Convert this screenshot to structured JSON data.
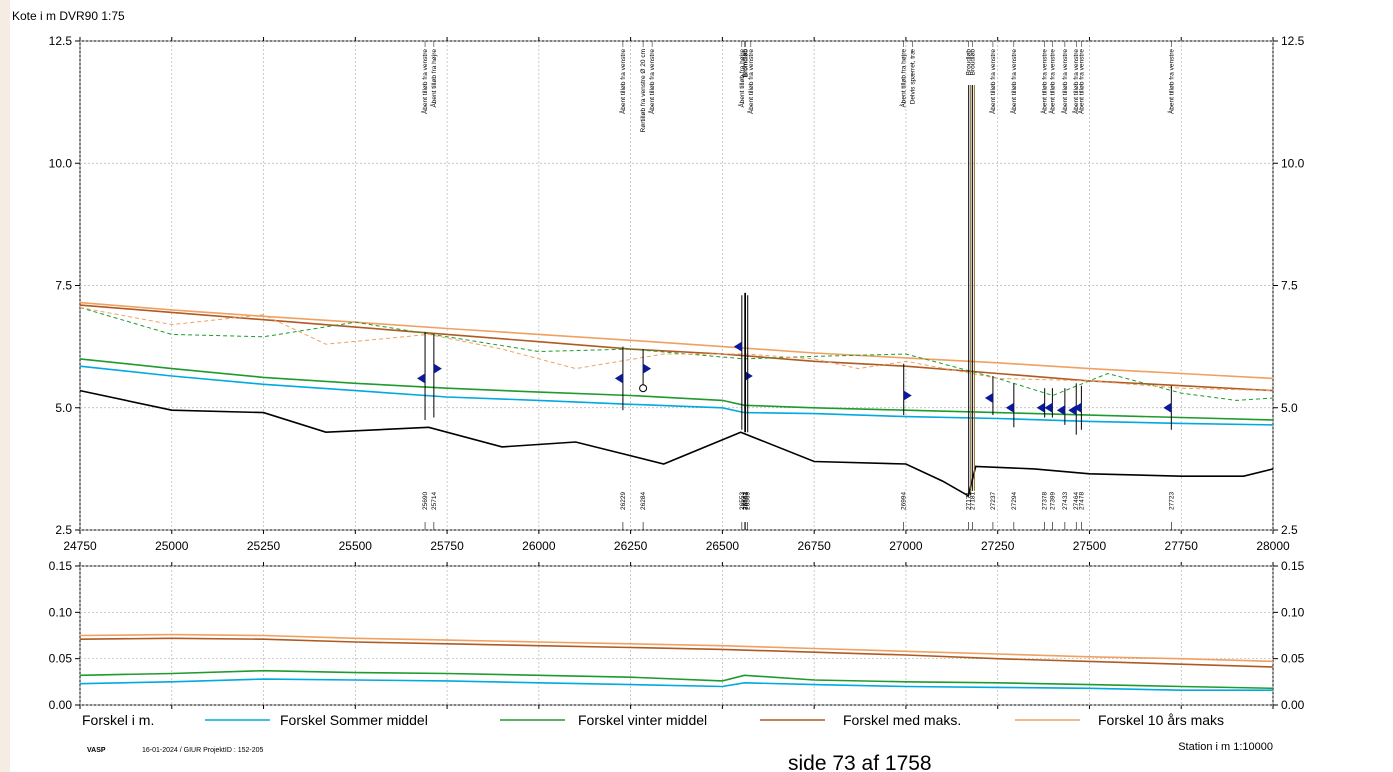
{
  "header": {
    "ylabel": "Kote i m DVR90 1:75"
  },
  "footer": {
    "logo": "VASP",
    "meta": "16-01-2024 / GIUR  ProjektID : 152-205",
    "page_label": "side 73 af 1758",
    "station_label": "Station i m  1:10000"
  },
  "colors": {
    "terrain": "#000000",
    "summer": "#00a9e0",
    "winter": "#1e9b2e",
    "max": "#b05a23",
    "tenyear": "#f0a060",
    "marker": "#0a1a9a"
  },
  "chart_data": [
    {
      "type": "line",
      "xlim": [
        24750,
        28000
      ],
      "ylim": [
        2.5,
        12.5
      ],
      "x_ticks": [
        24750,
        25000,
        25250,
        25500,
        25750,
        26000,
        26250,
        26500,
        26750,
        27000,
        27250,
        27500,
        27750,
        28000
      ],
      "y_ticks": [
        "2.5",
        "5.0",
        "7.5",
        "10.0",
        "12.5"
      ],
      "grid": true,
      "series": [
        {
          "key": "terrain",
          "points": [
            [
              24750,
              5.35
            ],
            [
              25000,
              4.95
            ],
            [
              25250,
              4.9
            ],
            [
              25420,
              4.5
            ],
            [
              25700,
              4.6
            ],
            [
              25900,
              4.2
            ],
            [
              26100,
              4.3
            ],
            [
              26340,
              3.85
            ],
            [
              26550,
              4.5
            ],
            [
              26750,
              3.9
            ],
            [
              27000,
              3.85
            ],
            [
              27100,
              3.5
            ],
            [
              27170,
              3.2
            ],
            [
              27190,
              3.8
            ],
            [
              27350,
              3.75
            ],
            [
              27500,
              3.65
            ],
            [
              27750,
              3.6
            ],
            [
              27920,
              3.6
            ],
            [
              28000,
              3.75
            ]
          ]
        },
        {
          "key": "summer",
          "points": [
            [
              24750,
              5.85
            ],
            [
              25000,
              5.65
            ],
            [
              25250,
              5.48
            ],
            [
              25500,
              5.35
            ],
            [
              25750,
              5.22
            ],
            [
              26000,
              5.15
            ],
            [
              26250,
              5.07
            ],
            [
              26500,
              5.0
            ],
            [
              26560,
              4.9
            ],
            [
              26750,
              4.88
            ],
            [
              27000,
              4.82
            ],
            [
              27250,
              4.78
            ],
            [
              27500,
              4.72
            ],
            [
              27750,
              4.68
            ],
            [
              28000,
              4.65
            ]
          ]
        },
        {
          "key": "winter",
          "points": [
            [
              24750,
              6.0
            ],
            [
              25000,
              5.8
            ],
            [
              25250,
              5.62
            ],
            [
              25500,
              5.5
            ],
            [
              25750,
              5.4
            ],
            [
              26000,
              5.32
            ],
            [
              26250,
              5.25
            ],
            [
              26500,
              5.15
            ],
            [
              26560,
              5.05
            ],
            [
              26750,
              5.0
            ],
            [
              27000,
              4.95
            ],
            [
              27250,
              4.9
            ],
            [
              27500,
              4.85
            ],
            [
              27750,
              4.8
            ],
            [
              28000,
              4.75
            ]
          ]
        },
        {
          "key": "max",
          "points": [
            [
              24750,
              7.1
            ],
            [
              25000,
              6.95
            ],
            [
              25250,
              6.8
            ],
            [
              25500,
              6.65
            ],
            [
              25750,
              6.5
            ],
            [
              26000,
              6.35
            ],
            [
              26250,
              6.2
            ],
            [
              26500,
              6.1
            ],
            [
              26750,
              5.95
            ],
            [
              27000,
              5.85
            ],
            [
              27250,
              5.7
            ],
            [
              27500,
              5.55
            ],
            [
              27750,
              5.45
            ],
            [
              28000,
              5.35
            ]
          ]
        },
        {
          "key": "tenyear",
          "points": [
            [
              24750,
              7.15
            ],
            [
              25000,
              7.0
            ],
            [
              25250,
              6.87
            ],
            [
              25500,
              6.75
            ],
            [
              25750,
              6.62
            ],
            [
              26000,
              6.5
            ],
            [
              26250,
              6.38
            ],
            [
              26500,
              6.25
            ],
            [
              26750,
              6.12
            ],
            [
              27000,
              6.02
            ],
            [
              27250,
              5.92
            ],
            [
              27500,
              5.8
            ],
            [
              27750,
              5.7
            ],
            [
              28000,
              5.6
            ]
          ]
        },
        {
          "key": "winter",
          "dashed": true,
          "points": [
            [
              24750,
              7.05
            ],
            [
              25000,
              6.5
            ],
            [
              25250,
              6.45
            ],
            [
              25500,
              6.75
            ],
            [
              25750,
              6.45
            ],
            [
              26000,
              6.15
            ],
            [
              26250,
              6.2
            ],
            [
              26560,
              6.0
            ],
            [
              26750,
              6.05
            ],
            [
              27000,
              6.1
            ],
            [
              27250,
              5.6
            ],
            [
              27400,
              5.25
            ],
            [
              27550,
              5.7
            ],
            [
              27750,
              5.3
            ],
            [
              27900,
              5.15
            ],
            [
              28000,
              5.2
            ]
          ]
        },
        {
          "key": "tenyear",
          "dashed": true,
          "points": [
            [
              24750,
              7.05
            ],
            [
              25000,
              6.7
            ],
            [
              25250,
              6.9
            ],
            [
              25420,
              6.3
            ],
            [
              25700,
              6.5
            ],
            [
              25900,
              6.2
            ],
            [
              26100,
              5.8
            ],
            [
              26340,
              6.1
            ],
            [
              26560,
              6.1
            ],
            [
              26750,
              6.0
            ],
            [
              26870,
              5.8
            ],
            [
              27000,
              5.95
            ],
            [
              27250,
              5.6
            ],
            [
              27500,
              5.55
            ],
            [
              27750,
              5.4
            ],
            [
              28000,
              5.35
            ]
          ]
        }
      ],
      "structures": [
        {
          "x": 25690,
          "top": 6.55,
          "bottom": 4.75,
          "label": "25690",
          "text": [
            "Åbent tilløb fra venstre"
          ],
          "marker": "left",
          "marker_y": 5.6
        },
        {
          "x": 25714,
          "top": 6.5,
          "bottom": 4.8,
          "label": "25714",
          "text": [
            "Åbent tilløb fra højre"
          ],
          "marker": "right",
          "marker_y": 5.8
        },
        {
          "x": 26229,
          "top": 6.25,
          "bottom": 4.95,
          "label": "26229",
          "text": [
            "Åbent tilløb fra venstre"
          ],
          "marker": "left",
          "marker_y": 5.6
        },
        {
          "x": 26284,
          "top": 6.2,
          "bottom": 5.35,
          "label": "26284",
          "text": [
            "Rørtilløb fra venstre Ø 20 cm",
            "Åbent tilløb fra venstre"
          ],
          "marker": "right",
          "marker_y": 5.8,
          "circle": 5.4
        },
        {
          "x": 26553,
          "top": 7.3,
          "bottom": 4.55,
          "label": "26553",
          "text": [
            "Åbent tilløb fra højre",
            "Åbent tilløb fra venstre"
          ],
          "marker": "left",
          "marker_y": 6.25
        },
        {
          "x": 26561,
          "top": 7.35,
          "bottom": 4.5,
          "label": "26561",
          "text": [
            "Bromdløb"
          ],
          "marker": "right",
          "marker_y": 5.65
        },
        {
          "x": 26563,
          "top": 7.35,
          "bottom": 4.5,
          "label": "26563",
          "text": [
            "Bromdløb"
          ]
        },
        {
          "x": 26569,
          "top": 7.3,
          "bottom": 4.5,
          "label": "26569",
          "text": []
        },
        {
          "x": 26994,
          "top": 5.9,
          "bottom": 4.85,
          "label": "26994",
          "text": [
            "Åbent tilløb fra højre",
            "Delvis spærret, træ"
          ],
          "marker": "right",
          "marker_y": 5.25
        },
        {
          "x": 27171,
          "top": 11.6,
          "bottom": 3.2,
          "label": "27171",
          "text": [
            "Broudløb"
          ]
        },
        {
          "x": 27181,
          "top": 11.6,
          "bottom": 3.3,
          "label": "27181",
          "text": [
            "Broudløb"
          ]
        },
        {
          "x": 27237,
          "top": 5.65,
          "bottom": 4.85,
          "label": "27237",
          "text": [
            "Åbent tilløb fra venstre"
          ],
          "marker": "left",
          "marker_y": 5.2
        },
        {
          "x": 27294,
          "top": 5.5,
          "bottom": 4.6,
          "label": "27294",
          "text": [
            "Åbent tilløb fra venstre"
          ],
          "marker": "left",
          "marker_y": 5.0
        },
        {
          "x": 27378,
          "top": 5.4,
          "bottom": 4.8,
          "label": "27378",
          "text": [
            "Åbent tilløb fra venstre"
          ],
          "marker": "left",
          "marker_y": 5.0
        },
        {
          "x": 27399,
          "top": 5.4,
          "bottom": 4.8,
          "label": "27399",
          "text": [
            "Åbent tilløb fra venstre"
          ],
          "marker": "left",
          "marker_y": 5.0
        },
        {
          "x": 27433,
          "top": 5.4,
          "bottom": 4.65,
          "label": "27433",
          "text": [
            "Åbent tilløb fra venstre"
          ],
          "marker": "left",
          "marker_y": 4.95
        },
        {
          "x": 27464,
          "top": 5.5,
          "bottom": 4.45,
          "label": "27464",
          "text": [
            "Åbent tilløb fra venstre"
          ],
          "marker": "left",
          "marker_y": 4.95
        },
        {
          "x": 27478,
          "top": 5.45,
          "bottom": 4.55,
          "label": "27478",
          "text": [
            "Åbent tilløb fra venstre"
          ],
          "marker": "left",
          "marker_y": 5.0
        },
        {
          "x": 27723,
          "top": 5.45,
          "bottom": 4.55,
          "label": "27723",
          "text": [
            "Åbent tilløb fra venstre"
          ],
          "marker": "left",
          "marker_y": 5.0
        }
      ]
    },
    {
      "type": "line",
      "xlim": [
        24750,
        28000
      ],
      "ylim": [
        0,
        0.15
      ],
      "y_ticks": [
        "0.00",
        "0.05",
        "0.10",
        "0.15"
      ],
      "grid": true,
      "series": [
        {
          "key": "summer",
          "points": [
            [
              24750,
              0.023
            ],
            [
              25000,
              0.025
            ],
            [
              25250,
              0.028
            ],
            [
              25500,
              0.027
            ],
            [
              25750,
              0.026
            ],
            [
              26000,
              0.024
            ],
            [
              26250,
              0.022
            ],
            [
              26500,
              0.02
            ],
            [
              26560,
              0.024
            ],
            [
              26750,
              0.022
            ],
            [
              27000,
              0.02
            ],
            [
              27250,
              0.019
            ],
            [
              27500,
              0.018
            ],
            [
              27750,
              0.016
            ],
            [
              28000,
              0.016
            ]
          ]
        },
        {
          "key": "winter",
          "points": [
            [
              24750,
              0.032
            ],
            [
              25000,
              0.034
            ],
            [
              25250,
              0.037
            ],
            [
              25500,
              0.035
            ],
            [
              25750,
              0.034
            ],
            [
              26000,
              0.032
            ],
            [
              26250,
              0.03
            ],
            [
              26500,
              0.026
            ],
            [
              26560,
              0.032
            ],
            [
              26750,
              0.027
            ],
            [
              27000,
              0.025
            ],
            [
              27250,
              0.024
            ],
            [
              27500,
              0.022
            ],
            [
              27750,
              0.02
            ],
            [
              28000,
              0.018
            ]
          ]
        },
        {
          "key": "max",
          "points": [
            [
              24750,
              0.071
            ],
            [
              25000,
              0.072
            ],
            [
              25250,
              0.071
            ],
            [
              25500,
              0.068
            ],
            [
              25750,
              0.066
            ],
            [
              26000,
              0.064
            ],
            [
              26250,
              0.062
            ],
            [
              26500,
              0.06
            ],
            [
              26750,
              0.057
            ],
            [
              27000,
              0.054
            ],
            [
              27250,
              0.05
            ],
            [
              27500,
              0.047
            ],
            [
              27750,
              0.044
            ],
            [
              28000,
              0.041
            ]
          ]
        },
        {
          "key": "tenyear",
          "points": [
            [
              24750,
              0.075
            ],
            [
              25000,
              0.076
            ],
            [
              25250,
              0.075
            ],
            [
              25500,
              0.072
            ],
            [
              25750,
              0.07
            ],
            [
              26000,
              0.068
            ],
            [
              26250,
              0.066
            ],
            [
              26500,
              0.064
            ],
            [
              26750,
              0.061
            ],
            [
              27000,
              0.058
            ],
            [
              27250,
              0.055
            ],
            [
              27500,
              0.052
            ],
            [
              27750,
              0.05
            ],
            [
              28000,
              0.047
            ]
          ]
        }
      ],
      "legend": [
        {
          "key": "summer",
          "name": "Forskel Sommer middel"
        },
        {
          "key": "winter",
          "name": "Forskel vinter middel"
        },
        {
          "key": "max",
          "name": "Forskel med maks."
        },
        {
          "key": "tenyear",
          "name": "Forskel 10 års maks"
        }
      ],
      "legend_title": "Forskel i m."
    }
  ]
}
